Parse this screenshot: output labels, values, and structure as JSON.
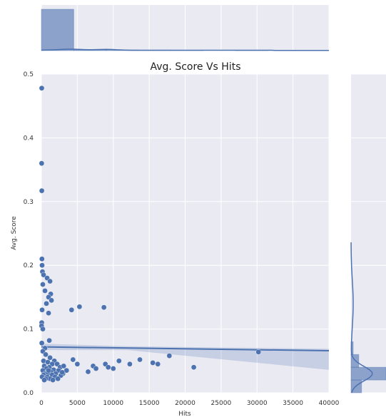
{
  "chart_data": {
    "type": "scatter",
    "title": "Avg. Score Vs Hits",
    "xlabel": "Hits",
    "ylabel": "Avg. Score",
    "xlim": [
      0,
      40000
    ],
    "ylim": [
      0,
      0.5
    ],
    "x_ticks": [
      "0",
      "5000",
      "10000",
      "15000",
      "20000",
      "25000",
      "30000",
      "35000",
      "40000"
    ],
    "y_ticks": [
      "0.0",
      "0.1",
      "0.2",
      "0.3",
      "0.4",
      "0.5"
    ],
    "grid": true,
    "marginals": "histogram + kde on top (Hits) and right (Avg. Score)",
    "regression_line": {
      "x": [
        0,
        40000
      ],
      "y": [
        0.072,
        0.066
      ]
    },
    "colors": {
      "points": "#4c72b0",
      "background": "#eaeaf2",
      "grid": "#ffffff"
    },
    "points": [
      {
        "x": 50,
        "y": 0.478
      },
      {
        "x": 40,
        "y": 0.36
      },
      {
        "x": 60,
        "y": 0.317
      },
      {
        "x": 80,
        "y": 0.21
      },
      {
        "x": 100,
        "y": 0.2
      },
      {
        "x": 150,
        "y": 0.19
      },
      {
        "x": 300,
        "y": 0.185
      },
      {
        "x": 800,
        "y": 0.18
      },
      {
        "x": 1200,
        "y": 0.175
      },
      {
        "x": 200,
        "y": 0.17
      },
      {
        "x": 500,
        "y": 0.16
      },
      {
        "x": 1300,
        "y": 0.155
      },
      {
        "x": 1000,
        "y": 0.15
      },
      {
        "x": 1400,
        "y": 0.145
      },
      {
        "x": 700,
        "y": 0.14
      },
      {
        "x": 100,
        "y": 0.13
      },
      {
        "x": 1000,
        "y": 0.125
      },
      {
        "x": 50,
        "y": 0.11
      },
      {
        "x": 30,
        "y": 0.105
      },
      {
        "x": 200,
        "y": 0.1
      },
      {
        "x": 1100,
        "y": 0.082
      },
      {
        "x": 60,
        "y": 0.078
      },
      {
        "x": 500,
        "y": 0.07
      },
      {
        "x": 200,
        "y": 0.065
      },
      {
        "x": 600,
        "y": 0.06
      },
      {
        "x": 1200,
        "y": 0.055
      },
      {
        "x": 1800,
        "y": 0.05
      },
      {
        "x": 300,
        "y": 0.05
      },
      {
        "x": 900,
        "y": 0.048
      },
      {
        "x": 1500,
        "y": 0.045
      },
      {
        "x": 2200,
        "y": 0.045
      },
      {
        "x": 400,
        "y": 0.042
      },
      {
        "x": 1100,
        "y": 0.04
      },
      {
        "x": 2600,
        "y": 0.04
      },
      {
        "x": 3100,
        "y": 0.042
      },
      {
        "x": 700,
        "y": 0.038
      },
      {
        "x": 1700,
        "y": 0.036
      },
      {
        "x": 2400,
        "y": 0.035
      },
      {
        "x": 200,
        "y": 0.035
      },
      {
        "x": 1300,
        "y": 0.033
      },
      {
        "x": 3500,
        "y": 0.035
      },
      {
        "x": 500,
        "y": 0.03
      },
      {
        "x": 900,
        "y": 0.03
      },
      {
        "x": 2000,
        "y": 0.03
      },
      {
        "x": 3000,
        "y": 0.03
      },
      {
        "x": 1500,
        "y": 0.028
      },
      {
        "x": 300,
        "y": 0.028
      },
      {
        "x": 2700,
        "y": 0.027
      },
      {
        "x": 800,
        "y": 0.025
      },
      {
        "x": 1900,
        "y": 0.025
      },
      {
        "x": 100,
        "y": 0.025
      },
      {
        "x": 1200,
        "y": 0.022
      },
      {
        "x": 600,
        "y": 0.022
      },
      {
        "x": 2300,
        "y": 0.022
      },
      {
        "x": 400,
        "y": 0.02
      },
      {
        "x": 1600,
        "y": 0.02
      },
      {
        "x": 2900,
        "y": 0.032
      },
      {
        "x": 1000,
        "y": 0.035
      },
      {
        "x": 4200,
        "y": 0.13
      },
      {
        "x": 5300,
        "y": 0.135
      },
      {
        "x": 8700,
        "y": 0.134
      },
      {
        "x": 4400,
        "y": 0.052
      },
      {
        "x": 5000,
        "y": 0.045
      },
      {
        "x": 6500,
        "y": 0.033
      },
      {
        "x": 7200,
        "y": 0.042
      },
      {
        "x": 7600,
        "y": 0.038
      },
      {
        "x": 8900,
        "y": 0.045
      },
      {
        "x": 9300,
        "y": 0.04
      },
      {
        "x": 10000,
        "y": 0.038
      },
      {
        "x": 10800,
        "y": 0.05
      },
      {
        "x": 12300,
        "y": 0.045
      },
      {
        "x": 13700,
        "y": 0.052
      },
      {
        "x": 15500,
        "y": 0.047
      },
      {
        "x": 16200,
        "y": 0.045
      },
      {
        "x": 17800,
        "y": 0.058
      },
      {
        "x": 21200,
        "y": 0.04
      },
      {
        "x": 30200,
        "y": 0.064
      }
    ],
    "top_hist": [
      {
        "x0": 0,
        "x1": 4500,
        "count_frac": 1.0
      },
      {
        "x0": 4500,
        "x1": 9000,
        "count_frac": 0.02
      },
      {
        "x0": 9000,
        "x1": 13500,
        "count_frac": 0.015
      },
      {
        "x0": 13500,
        "x1": 18000,
        "count_frac": 0.01
      },
      {
        "x0": 18000,
        "x1": 22500,
        "count_frac": 0.005
      },
      {
        "x0": 22500,
        "x1": 27000,
        "count_frac": 0.0
      },
      {
        "x0": 27000,
        "x1": 31500,
        "count_frac": 0.005
      },
      {
        "x0": 31500,
        "x1": 36000,
        "count_frac": 0.0
      },
      {
        "x0": 36000,
        "x1": 40000,
        "count_frac": 0.0
      }
    ],
    "right_hist": [
      {
        "y0": 0.0,
        "y1": 0.02,
        "count_frac": 0.3
      },
      {
        "y0": 0.02,
        "y1": 0.04,
        "count_frac": 1.0
      },
      {
        "y0": 0.04,
        "y1": 0.06,
        "count_frac": 0.22
      },
      {
        "y0": 0.06,
        "y1": 0.08,
        "count_frac": 0.06
      }
    ]
  }
}
